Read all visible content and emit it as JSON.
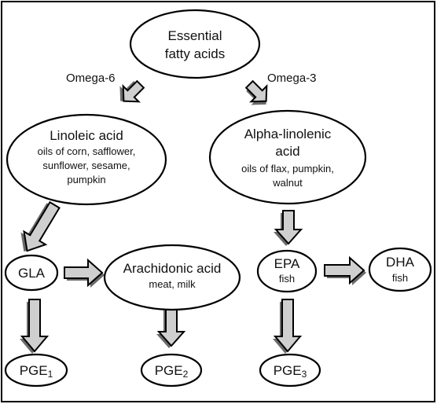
{
  "nodes": {
    "essential": {
      "line1": "Essential",
      "line2": "fatty acids"
    },
    "linoleic": {
      "title": "Linoleic acid",
      "sub1": "oils of corn, safflower,",
      "sub2": "sunflower, sesame,",
      "sub3": "pumpkin"
    },
    "alpha": {
      "title1": "Alpha-linolenic",
      "title2": "acid",
      "sub1": "oils of flax, pumpkin,",
      "sub2": "walnut"
    },
    "gla": {
      "label": "GLA"
    },
    "arachidonic": {
      "title": "Arachidonic acid",
      "sub": "meat, milk"
    },
    "epa": {
      "title": "EPA",
      "sub": "fish"
    },
    "dha": {
      "title": "DHA",
      "sub": "fish"
    },
    "pge1": {
      "base": "PGE",
      "sub": "1"
    },
    "pge2": {
      "base": "PGE",
      "sub": "2"
    },
    "pge3": {
      "base": "PGE",
      "sub": "3"
    }
  },
  "branches": {
    "omega6": "Omega-6",
    "omega3": "Omega-3"
  },
  "colors": {
    "arrow_fill": "#cfcfcf",
    "arrow_shadow": "#6a6a6a",
    "outline": "#000000"
  }
}
